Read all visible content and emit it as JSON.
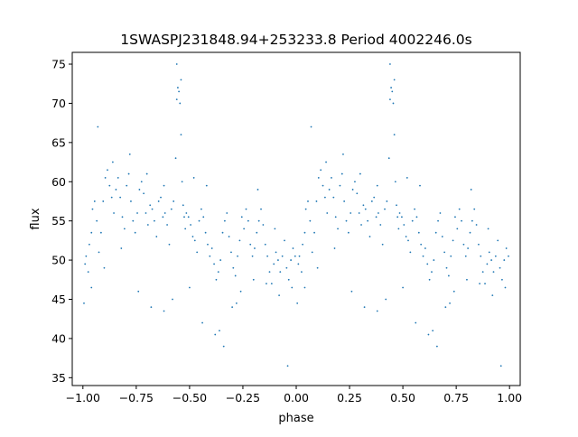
{
  "chart_data": {
    "type": "scatter",
    "title": "1SWASPJ231848.94+253233.8 Period 4002246.0s",
    "xlabel": "phase",
    "ylabel": "flux",
    "xlim": [
      -1.05,
      1.05
    ],
    "ylim": [
      34.0,
      76.5
    ],
    "xticks": [
      -1.0,
      -0.75,
      -0.5,
      -0.25,
      0.0,
      0.25,
      0.5,
      0.75,
      1.0
    ],
    "xtick_labels": [
      "−1.00",
      "−0.75",
      "−0.50",
      "−0.25",
      "0.00",
      "0.25",
      "0.50",
      "0.75",
      "1.00"
    ],
    "yticks": [
      35,
      40,
      45,
      50,
      55,
      60,
      65,
      70,
      75
    ],
    "ytick_labels": [
      "35",
      "40",
      "45",
      "50",
      "55",
      "60",
      "65",
      "70",
      "75"
    ],
    "grid": false,
    "legend": false,
    "marker_color": "#1f77b4",
    "folded_period_repeat": 1.0,
    "series": [
      {
        "x": [
          -0.995,
          -0.99,
          -0.985,
          -0.975,
          -0.97,
          -0.96,
          -0.955,
          -0.945,
          -0.935,
          -0.925,
          -0.915,
          -0.905,
          -0.895,
          -0.885,
          -0.875,
          -0.865,
          -0.855,
          -0.845,
          -0.835,
          -0.825,
          -0.815,
          -0.805,
          -0.795,
          -0.785,
          -0.775,
          -0.765,
          -0.755,
          -0.745,
          -0.735,
          -0.725,
          -0.715,
          -0.705,
          -0.695,
          -0.685,
          -0.675,
          -0.665,
          -0.655,
          -0.645,
          -0.635,
          -0.625,
          -0.615,
          -0.605,
          -0.595,
          -0.585,
          -0.575,
          -0.565,
          -0.56,
          -0.555,
          -0.55,
          -0.545,
          -0.54,
          -0.535,
          -0.53,
          -0.525,
          -0.52,
          -0.515,
          -0.505,
          -0.495,
          -0.485,
          -0.475,
          -0.465,
          -0.455,
          -0.445,
          -0.435,
          -0.425,
          -0.415,
          -0.405,
          -0.395,
          -0.385,
          -0.375,
          -0.365,
          -0.355,
          -0.345,
          -0.335,
          -0.325,
          -0.315,
          -0.305,
          -0.295,
          -0.285,
          -0.275,
          -0.265,
          -0.255,
          -0.245,
          -0.235,
          -0.225,
          -0.215,
          -0.205,
          -0.195,
          -0.185,
          -0.175,
          -0.165,
          -0.155,
          -0.145,
          -0.135,
          -0.125,
          -0.115,
          -0.105,
          -0.095,
          -0.085,
          -0.075,
          -0.065,
          -0.055,
          -0.045,
          -0.035,
          -0.025,
          -0.015,
          -0.005
        ],
        "y": [
          44.5,
          49.5,
          50.5,
          48.5,
          52.0,
          53.5,
          56.5,
          57.5,
          55.0,
          51.0,
          53.5,
          57.5,
          60.5,
          61.5,
          59.5,
          58.0,
          56.0,
          59.0,
          60.5,
          58.0,
          55.5,
          54.0,
          59.5,
          61.0,
          57.5,
          55.0,
          53.5,
          56.0,
          59.0,
          60.0,
          58.5,
          56.0,
          54.5,
          57.0,
          56.5,
          55.0,
          53.0,
          57.5,
          58.0,
          55.5,
          56.0,
          54.5,
          52.0,
          56.5,
          57.5,
          63.0,
          70.5,
          72.0,
          71.5,
          70.0,
          66.0,
          60.0,
          57.0,
          55.5,
          54.0,
          56.0,
          55.5,
          54.5,
          53.0,
          52.5,
          51.0,
          55.0,
          56.5,
          55.5,
          53.5,
          52.0,
          50.5,
          51.5,
          49.5,
          47.5,
          48.5,
          50.0,
          53.5,
          55.0,
          56.0,
          53.0,
          51.0,
          49.0,
          48.0,
          50.5,
          52.5,
          55.5,
          54.0,
          56.5,
          55.0,
          52.0,
          50.5,
          51.5,
          53.5,
          55.0,
          56.5,
          54.5,
          52.0,
          50.5,
          48.5,
          47.0,
          49.5,
          51.0,
          50.0,
          48.5,
          50.5,
          52.5,
          49.0,
          47.5,
          50.0,
          51.5,
          50.5
        ]
      },
      {
        "x": [
          -0.96,
          -0.9,
          -0.82,
          -0.74,
          -0.68,
          -0.62,
          -0.58,
          -0.5,
          -0.44,
          -0.38,
          -0.34,
          -0.3,
          -0.26,
          -0.2,
          -0.14,
          -0.08,
          -0.02
        ],
        "y": [
          46.5,
          49.0,
          51.5,
          46.0,
          44.0,
          43.5,
          45.0,
          46.5,
          42.0,
          40.5,
          39.0,
          44.0,
          46.0,
          47.5,
          47.0,
          45.5,
          46.5
        ]
      },
      {
        "x": [
          -0.93,
          -0.86,
          -0.78,
          -0.7,
          -0.62,
          -0.56,
          -0.54,
          -0.48,
          -0.42,
          -0.36,
          -0.28,
          -0.18,
          -0.1,
          -0.04
        ],
        "y": [
          67.0,
          62.5,
          63.5,
          61.0,
          59.5,
          75.0,
          73.0,
          60.5,
          59.5,
          41.0,
          44.5,
          59.0,
          54.0,
          36.5
        ]
      }
    ]
  }
}
